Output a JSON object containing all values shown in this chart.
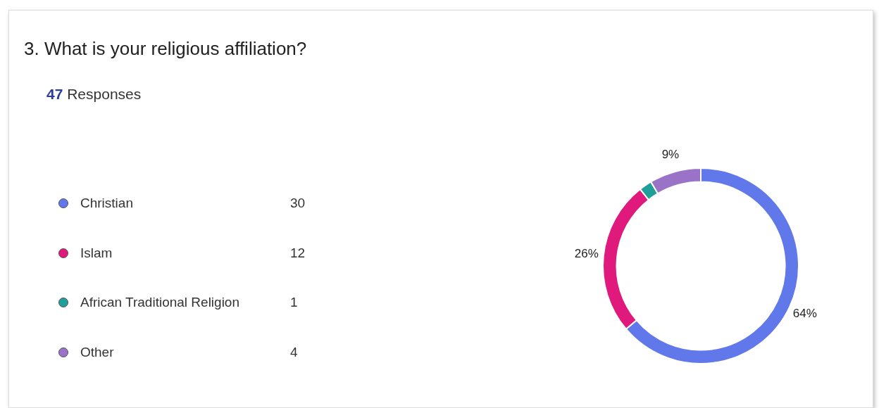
{
  "chart_data": {
    "type": "donut",
    "title": "3. What is your religious affiliation?",
    "subtitle": "47 Responses",
    "categories": [
      "Christian",
      "Islam",
      "African Traditional Religion",
      "Other"
    ],
    "values": [
      30,
      12,
      1,
      4
    ],
    "colors": [
      "#6078ea",
      "#e0197d",
      "#1f9e9a",
      "#9a73c9"
    ],
    "annotations": [
      {
        "text": "64%",
        "x": "Christian"
      },
      {
        "text": "26%",
        "x": "Islam"
      },
      {
        "text": "9%",
        "x": "Other"
      }
    ],
    "data_labels": true,
    "legend": "left"
  }
}
